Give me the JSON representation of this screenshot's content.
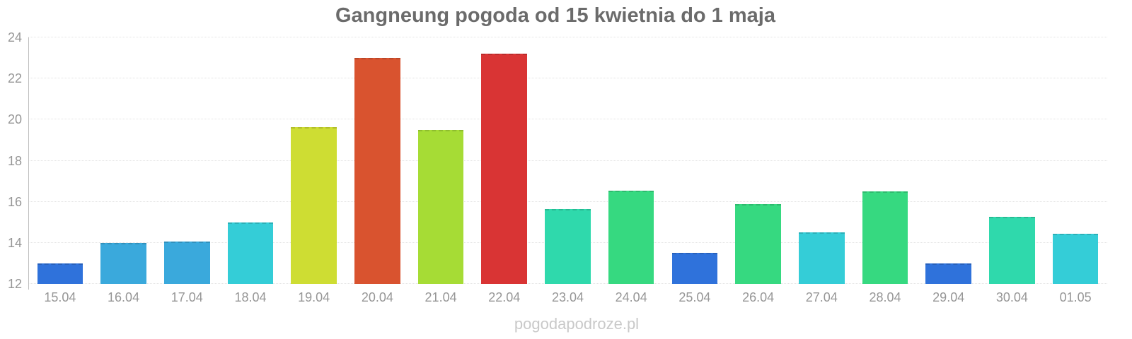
{
  "watermark": "pogodapodroze.pl",
  "colors": {
    "background": "#ffffff",
    "title_text": "#6b6b6b",
    "axis_line": "#bdbdbd",
    "gridline": "#e3e3e3",
    "tick_label": "#969696",
    "watermark_text": "#c9c9c9"
  },
  "chart_data": {
    "type": "bar",
    "title": "Gangneung pogoda od 15 kwietnia do 1 maja",
    "xlabel": "",
    "ylabel": "",
    "categories": [
      "15.04",
      "16.04",
      "17.04",
      "18.04",
      "19.04",
      "20.04",
      "21.04",
      "22.04",
      "23.04",
      "24.04",
      "25.04",
      "26.04",
      "27.04",
      "28.04",
      "29.04",
      "30.04",
      "01.05"
    ],
    "values": [
      13,
      14,
      14.05,
      15,
      19.65,
      23,
      19.5,
      23.2,
      15.65,
      16.55,
      13.5,
      15.9,
      14.5,
      16.5,
      13,
      15.25,
      14.45
    ],
    "bar_colors": [
      "#2f72db",
      "#3aa9dc",
      "#3aa9dc",
      "#34cdd7",
      "#cedd33",
      "#d9532f",
      "#a6dc35",
      "#d93434",
      "#2fd9ac",
      "#36d980",
      "#2f72db",
      "#36d980",
      "#34cdd7",
      "#36d980",
      "#2f72db",
      "#2fd9ac",
      "#34cdd7"
    ],
    "ylim": [
      12,
      24
    ],
    "yticks": [
      12,
      14,
      16,
      18,
      20,
      22,
      24
    ],
    "grid": true,
    "legend": false,
    "units": "°C"
  }
}
